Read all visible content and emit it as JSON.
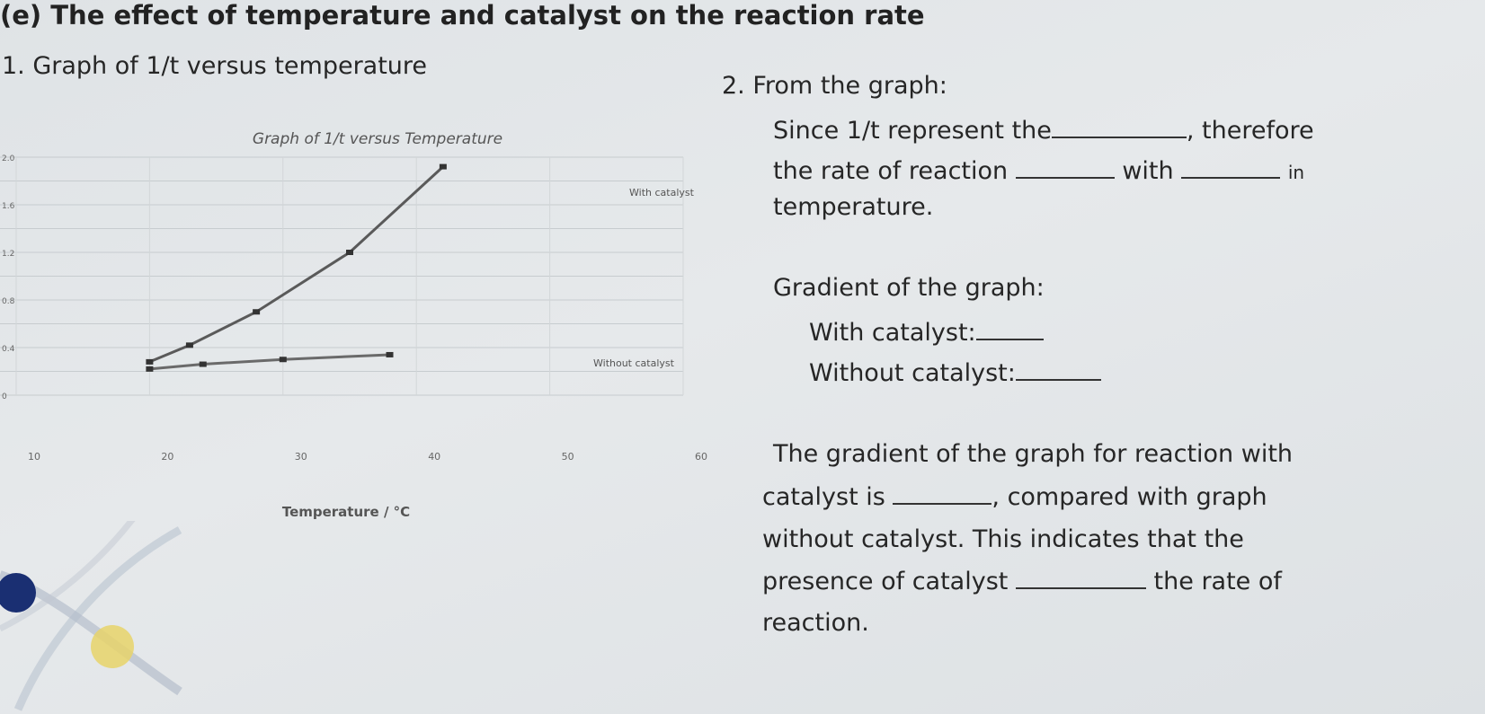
{
  "header": {
    "title": "(e) The effect of temperature and catalyst on the reaction rate"
  },
  "section1": {
    "heading": "1. Graph of 1/t versus temperature"
  },
  "chart_data": {
    "type": "line",
    "title": "Graph of  1/t  versus Temperature",
    "xlabel": "Temperature / °C",
    "ylabel": "",
    "x_ticks": [
      "10",
      "20",
      "30",
      "40",
      "50",
      "60"
    ],
    "y_ticks": [
      "2.0",
      "1.6",
      "1.2",
      "0.8",
      "0.4",
      "0"
    ],
    "xlim": [
      10,
      60
    ],
    "ylim": [
      0,
      2.0
    ],
    "grid": true,
    "series": [
      {
        "name": "With catalyst",
        "x": [
          20,
          23,
          28,
          35,
          42
        ],
        "y": [
          0.28,
          0.42,
          0.7,
          1.2,
          1.92
        ]
      },
      {
        "name": "Without catalyst",
        "x": [
          20,
          24,
          30,
          38
        ],
        "y": [
          0.22,
          0.26,
          0.3,
          0.34
        ]
      }
    ]
  },
  "section2": {
    "heading": "2. From the graph:",
    "line1a": "Since 1/t represent the",
    "line1b": ", therefore",
    "line2a": "the rate of reaction",
    "line2b": "with",
    "line2c": "in",
    "line3": "temperature.",
    "gradient_heading": "Gradient of the graph:",
    "with_catalyst": "With catalyst:",
    "without_catalyst": "Without catalyst:",
    "para_l1": "The gradient of the graph for reaction with",
    "para_l2a": "catalyst is",
    "para_l2b": ", compared with graph",
    "para_l3": "without catalyst. This indicates that the",
    "para_l4a": "presence of catalyst",
    "para_l4b": "the rate of",
    "para_l5": "reaction."
  }
}
